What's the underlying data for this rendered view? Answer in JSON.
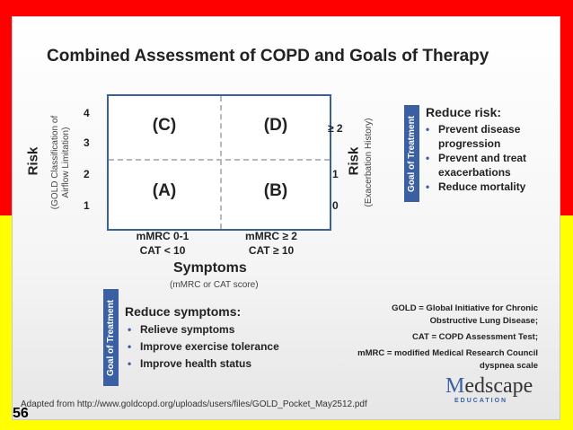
{
  "title": "Combined Assessment of COPD and Goals of Therapy",
  "quadrants": {
    "c": "(C)",
    "d": "(D)",
    "a": "(A)",
    "b": "(B)"
  },
  "left_axis": {
    "label": "Risk",
    "sublabel_line1": "(GOLD Classification of",
    "sublabel_line2": "Airflow Limitation)",
    "ticks": [
      "4",
      "3",
      "2",
      "1"
    ]
  },
  "right_axis": {
    "label": "Risk",
    "sublabel": "(Exacerbation History)",
    "ticks": [
      "≥ 2",
      "1",
      "0"
    ]
  },
  "x_axis": {
    "left_line1": "mMRC 0-1",
    "left_line2": "CAT < 10",
    "right_line1": "mMRC ≥ 2",
    "right_line2": "CAT ≥ 10",
    "label": "Symptoms",
    "sublabel": "(mMRC or CAT score)"
  },
  "goal_label": "Goal of Treatment",
  "reduce_risk": {
    "heading": "Reduce risk:",
    "items": [
      "Prevent disease",
      "progression",
      "Prevent and treat",
      "exacerbations",
      "Reduce mortality"
    ]
  },
  "reduce_symptoms": {
    "heading": "Reduce symptoms:",
    "items": [
      "Relieve symptoms",
      "Improve exercise tolerance",
      "Improve health status"
    ]
  },
  "definitions": {
    "gold_line1": "GOLD = Global Initiative for Chronic",
    "gold_line2": "Obstructive Lung Disease;",
    "cat": "CAT = COPD Assessment Test;",
    "mmrc_line1": "mMRC = modified Medical Research Council",
    "mmrc_line2": "dyspnea scale"
  },
  "footer": "Adapted from http://www.goldcopd.org/uploads/users/files/GOLD_Pocket_May2512.pdf",
  "logo": {
    "m": "M",
    "rest": "edscape",
    "sub": "EDUCATION"
  },
  "slide_number": "56",
  "colors": {
    "accent": "#3b5fa3",
    "top_band": "#ff0000",
    "bottom_band": "#ffff00"
  }
}
